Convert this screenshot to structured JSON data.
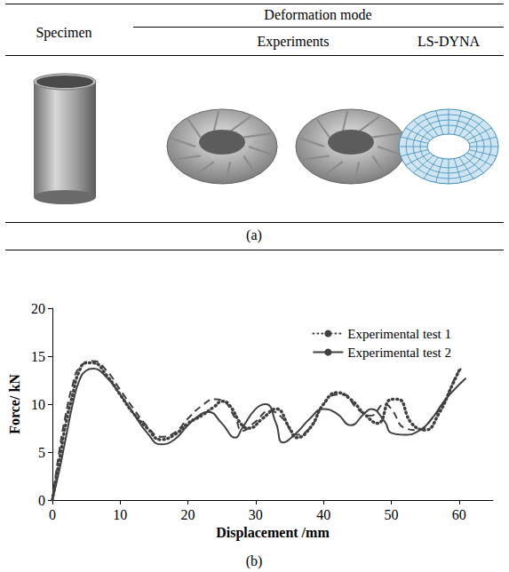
{
  "table": {
    "header": {
      "first_column": "Specimen",
      "group": "Deformation mode",
      "columns": [
        "Experiments",
        "LS-DYNA"
      ]
    },
    "caption": "(a)"
  },
  "chart_data": {
    "type": "line",
    "caption": "(b)",
    "x_label": "Displacement /mm",
    "y_label": "Force/ kN",
    "xlim": [
      0,
      65
    ],
    "xticks": [
      0,
      10,
      20,
      30,
      40,
      50,
      60
    ],
    "ylim": [
      0,
      20
    ],
    "yticks": [
      0,
      5,
      10,
      15,
      20
    ],
    "grid": false,
    "legend": "upper right",
    "series": [
      {
        "name": "Experimental test 1",
        "color": "#404040",
        "line_style": "dotted",
        "x": [
          0,
          1,
          2,
          3,
          4,
          5,
          6,
          8,
          10,
          12,
          14,
          16,
          18,
          20,
          22,
          24,
          25,
          26,
          28,
          29,
          31,
          33,
          35,
          36,
          38,
          40,
          42,
          44,
          46,
          48,
          50,
          51,
          53,
          55,
          57,
          59,
          60
        ],
        "values": [
          0,
          4,
          8,
          11,
          13.5,
          14.3,
          14.3,
          13,
          11,
          9,
          7.5,
          6.3,
          6.8,
          8,
          8.8,
          9.8,
          10.3,
          10,
          7.8,
          7.5,
          8.5,
          9.5,
          7.5,
          6.5,
          7.5,
          10,
          11.2,
          10.5,
          9,
          8,
          10.5,
          10.5,
          8,
          7.3,
          9,
          12,
          13.5
        ]
      },
      {
        "name": "Experimental test 2",
        "color": "#404040",
        "line_style": "solid",
        "x": [
          0,
          1,
          2,
          3,
          4,
          5,
          6,
          8,
          10,
          12,
          14,
          16,
          18,
          20,
          22,
          23,
          25,
          27,
          28,
          30,
          31.5,
          33,
          34,
          36,
          38,
          40,
          42,
          44,
          46,
          47,
          49,
          50,
          52,
          54,
          56,
          58,
          61
        ],
        "values": [
          0,
          3,
          6.5,
          10,
          12.5,
          13.5,
          13.7,
          12.8,
          11,
          9,
          7,
          5.8,
          6.3,
          7.8,
          9,
          9.2,
          8,
          6.5,
          7.5,
          9.5,
          10,
          8,
          6,
          7,
          8.5,
          9.5,
          9,
          7.8,
          9,
          9.5,
          8.2,
          7,
          6.8,
          7.2,
          8.5,
          10.5,
          12.7
        ]
      },
      {
        "color": "#404040",
        "line_style": "dashed",
        "x": [
          0,
          1,
          2,
          3,
          4,
          6,
          8,
          10,
          12,
          14,
          16,
          18,
          20,
          22,
          24,
          25,
          27,
          28,
          30,
          32,
          34,
          36,
          38,
          40,
          42,
          43,
          45,
          47,
          49,
          50,
          52,
          54,
          56,
          58,
          60,
          61
        ],
        "values": [
          0,
          5,
          9,
          12,
          13.8,
          14.5,
          13.5,
          11.5,
          9.5,
          7.7,
          6.6,
          7,
          8.5,
          9.8,
          10.5,
          10.4,
          8.5,
          7.2,
          8.2,
          9.3,
          8.5,
          6.8,
          7.5,
          10,
          11,
          11,
          9.5,
          8.8,
          10,
          9.5,
          7.5,
          7.3,
          8.5,
          10.5,
          13.5,
          13.8
        ]
      }
    ]
  }
}
